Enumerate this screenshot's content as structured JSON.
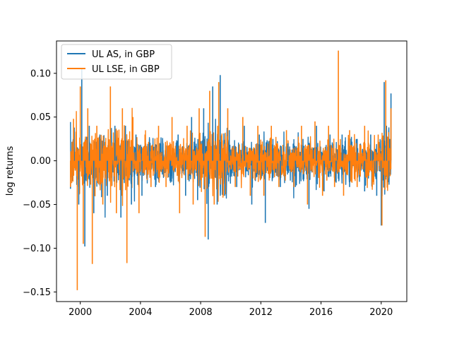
{
  "chart_data": {
    "type": "line",
    "title": "",
    "xlabel": "",
    "ylabel": "log returns",
    "xlim": [
      1998.42,
      2021.7
    ],
    "ylim": [
      -0.161,
      0.137
    ],
    "x_ticks": [
      {
        "value": 2000,
        "label": "2000"
      },
      {
        "value": 2004,
        "label": "2004"
      },
      {
        "value": 2008,
        "label": "2008"
      },
      {
        "value": 2012,
        "label": "2012"
      },
      {
        "value": 2016,
        "label": "2016"
      },
      {
        "value": 2020,
        "label": "2020"
      }
    ],
    "y_ticks": [
      {
        "value": 0.1,
        "label": "0.10"
      },
      {
        "value": 0.05,
        "label": "0.05"
      },
      {
        "value": 0.0,
        "label": "0.00"
      },
      {
        "value": -0.05,
        "label": "−0.05"
      },
      {
        "value": -0.1,
        "label": "−0.10"
      },
      {
        "value": -0.15,
        "label": "−0.15"
      }
    ],
    "legend": {
      "placement": "upper-left"
    },
    "grid": false,
    "series": [
      {
        "name": "UL AS, in GBP",
        "color": "#1f77b4",
        "x": [
          1999.35,
          1999.6,
          1999.9,
          2000.1,
          2000.3,
          2000.6,
          2000.9,
          2001.3,
          2001.8,
          2002.3,
          2002.7,
          2003.0,
          2003.4,
          2003.7,
          2004.1,
          2004.6,
          2005.0,
          2005.5,
          2006.0,
          2006.5,
          2007.0,
          2007.4,
          2007.8,
          2008.2,
          2008.5,
          2008.8,
          2009.1,
          2009.3,
          2009.6,
          2009.9,
          2010.4,
          2010.9,
          2011.4,
          2011.9,
          2012.3,
          2012.8,
          2013.3,
          2013.8,
          2014.3,
          2014.8,
          2015.2,
          2015.7,
          2016.2,
          2016.6,
          2017.0,
          2017.4,
          2017.9,
          2018.4,
          2018.9,
          2019.3,
          2019.7,
          2020.0,
          2020.2,
          2020.35,
          2020.5,
          2020.65
        ],
        "y": [
          -0.032,
          0.038,
          -0.05,
          0.105,
          -0.098,
          0.04,
          -0.06,
          0.03,
          -0.04,
          0.04,
          -0.065,
          0.04,
          -0.05,
          0.03,
          -0.04,
          0.025,
          -0.03,
          0.02,
          -0.025,
          0.03,
          -0.04,
          0.05,
          -0.045,
          0.06,
          -0.09,
          0.085,
          -0.05,
          0.098,
          -0.04,
          0.035,
          -0.03,
          0.04,
          -0.05,
          0.03,
          -0.071,
          0.025,
          -0.03,
          0.02,
          -0.03,
          0.025,
          -0.055,
          0.04,
          -0.035,
          0.03,
          -0.025,
          0.03,
          -0.03,
          0.025,
          -0.035,
          0.03,
          -0.04,
          -0.074,
          0.09,
          0.04,
          -0.02,
          0.077
        ]
      },
      {
        "name": "UL LSE, in GBP",
        "color": "#ff7f0e",
        "x": [
          1999.35,
          1999.55,
          1999.8,
          2000.0,
          2000.2,
          2000.5,
          2000.8,
          2001.1,
          2001.5,
          2002.0,
          2002.4,
          2002.8,
          2003.1,
          2003.5,
          2003.9,
          2004.3,
          2004.7,
          2005.2,
          2005.7,
          2006.1,
          2006.6,
          2007.1,
          2007.5,
          2007.9,
          2008.3,
          2008.6,
          2008.9,
          2009.2,
          2009.5,
          2009.8,
          2010.3,
          2010.8,
          2011.3,
          2011.8,
          2012.2,
          2012.7,
          2013.2,
          2013.7,
          2014.2,
          2014.7,
          2015.1,
          2015.6,
          2016.1,
          2016.5,
          2016.9,
          2017.15,
          2017.5,
          2017.9,
          2018.4,
          2018.9,
          2019.4,
          2019.8,
          2020.05,
          2020.3,
          2020.45,
          2020.65
        ],
        "y": [
          -0.03,
          0.048,
          -0.148,
          0.085,
          -0.095,
          0.06,
          -0.118,
          0.04,
          -0.05,
          0.085,
          -0.06,
          0.06,
          -0.117,
          0.05,
          -0.06,
          0.03,
          -0.03,
          0.04,
          -0.03,
          0.05,
          -0.06,
          0.04,
          -0.05,
          0.06,
          -0.087,
          0.08,
          -0.05,
          0.09,
          -0.04,
          0.06,
          -0.03,
          0.05,
          -0.04,
          0.04,
          -0.04,
          0.04,
          -0.03,
          0.035,
          -0.03,
          0.04,
          -0.05,
          0.045,
          -0.04,
          0.04,
          -0.03,
          0.126,
          -0.04,
          0.035,
          -0.03,
          0.04,
          -0.03,
          0.03,
          -0.074,
          0.092,
          -0.02,
          0.06
        ]
      }
    ]
  }
}
